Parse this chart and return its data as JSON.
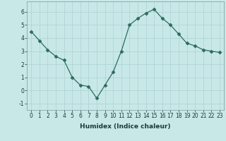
{
  "x": [
    0,
    1,
    2,
    3,
    4,
    5,
    6,
    7,
    8,
    9,
    10,
    11,
    12,
    13,
    14,
    15,
    16,
    17,
    18,
    19,
    20,
    21,
    22,
    23
  ],
  "y": [
    4.5,
    3.8,
    3.1,
    2.6,
    2.3,
    1.0,
    0.4,
    0.3,
    -0.6,
    0.4,
    1.4,
    3.0,
    5.0,
    5.5,
    5.9,
    6.2,
    5.5,
    5.0,
    4.3,
    3.6,
    3.4,
    3.1,
    3.0,
    2.9
  ],
  "xlabel": "Humidex (Indice chaleur)",
  "line_color": "#2e6b5e",
  "marker": "D",
  "marker_size": 2.5,
  "bg_color": "#c8e8e8",
  "grid_color": "#afd4d4",
  "ylim": [
    -1.5,
    6.8
  ],
  "xlim": [
    -0.5,
    23.5
  ],
  "yticks": [
    -1,
    0,
    1,
    2,
    3,
    4,
    5,
    6
  ],
  "xticks": [
    0,
    1,
    2,
    3,
    4,
    5,
    6,
    7,
    8,
    9,
    10,
    11,
    12,
    13,
    14,
    15,
    16,
    17,
    18,
    19,
    20,
    21,
    22,
    23
  ],
  "tick_fontsize": 5.5,
  "xlabel_fontsize": 6.5
}
